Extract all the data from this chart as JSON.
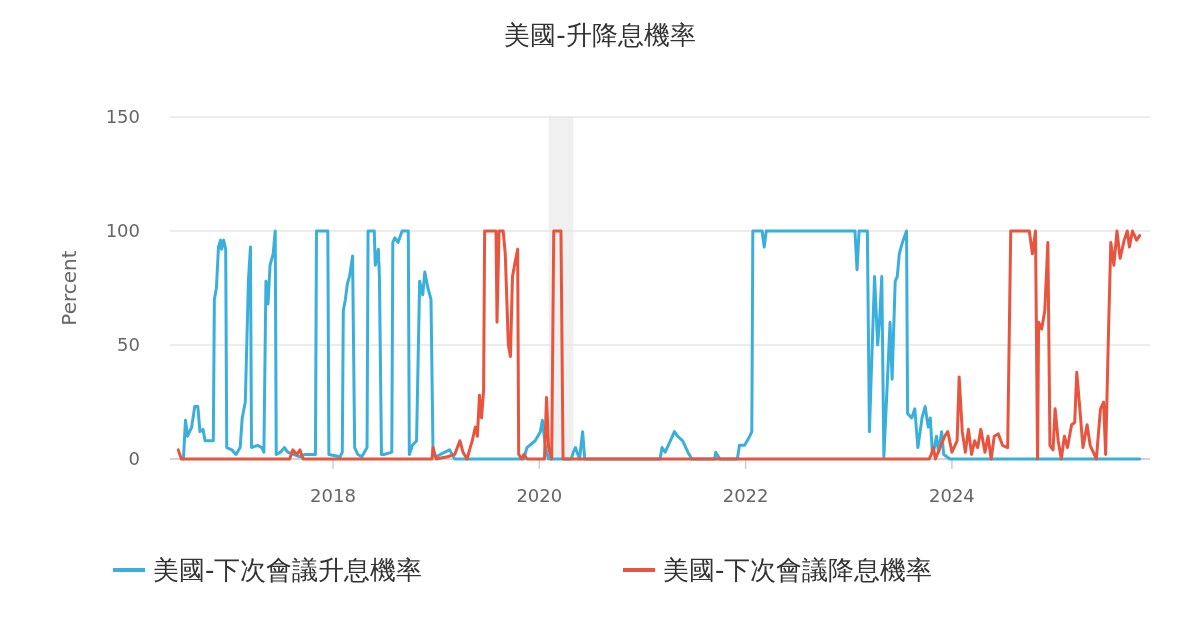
{
  "chart_data": {
    "type": "line",
    "title": "美國-升降息機率",
    "ylabel": "Percent",
    "xlim": [
      2016.42,
      2025.92
    ],
    "xticks": [
      2018,
      2020,
      2022,
      2024
    ],
    "ylim": [
      0,
      150
    ],
    "yticks": [
      0,
      50,
      100,
      150
    ],
    "grid": "y",
    "legend": "bottom",
    "line_style": "solid",
    "bands": [
      {
        "axis": "x",
        "from": 2020.09,
        "to": 2020.33,
        "color": "#f0f0f0"
      }
    ],
    "series": [
      {
        "name": "美國-下次會議升息機率",
        "color": "#3aafdc",
        "x": [
          2016.55,
          2016.57,
          2016.59,
          2016.63,
          2016.66,
          2016.69,
          2016.71,
          2016.74,
          2016.76,
          2016.81,
          2016.84,
          2016.85,
          2016.87,
          2016.89,
          2016.91,
          2016.92,
          2016.94,
          2016.96,
          2016.97,
          2017.02,
          2017.06,
          2017.1,
          2017.12,
          2017.15,
          2017.18,
          2017.2,
          2017.21,
          2017.27,
          2017.31,
          2017.33,
          2017.35,
          2017.37,
          2017.39,
          2017.42,
          2017.44,
          2017.45,
          2017.49,
          2017.53,
          2017.56,
          2017.68,
          2017.73,
          2017.83,
          2017.84,
          2017.95,
          2017.96,
          2018.07,
          2018.09,
          2018.1,
          2018.12,
          2018.14,
          2018.16,
          2018.19,
          2018.21,
          2018.24,
          2018.28,
          2018.33,
          2018.34,
          2018.4,
          2018.41,
          2018.44,
          2018.45,
          2018.47,
          2018.5,
          2018.57,
          2018.58,
          2018.6,
          2018.63,
          2018.67,
          2018.73,
          2018.74,
          2018.77,
          2018.81,
          2018.84,
          2018.87,
          2018.89,
          2018.92,
          2018.95,
          2018.97,
          2019,
          2019.04,
          2019.13,
          2019.18,
          2019.85,
          2019.88,
          2019.96,
          2020.01,
          2020.03,
          2020.06,
          2020.09,
          2020.31,
          2020.33,
          2020.35,
          2020.39,
          2020.42,
          2020.44,
          2021.17,
          2021.19,
          2021.22,
          2021.27,
          2021.31,
          2021.34,
          2021.39,
          2021.44,
          2021.48,
          2021.7,
          2021.71,
          2021.75,
          2021.92,
          2021.94,
          2021.99,
          2022.04,
          2022.06,
          2022.07,
          2022.16,
          2022.18,
          2022.2,
          2023.06,
          2023.08,
          2023.1,
          2023.18,
          2023.2,
          2023.22,
          2023.25,
          2023.28,
          2023.3,
          2023.32,
          2023.34,
          2023.37,
          2023.4,
          2023.42,
          2023.45,
          2023.47,
          2023.49,
          2023.52,
          2023.56,
          2023.57,
          2023.61,
          2023.64,
          2023.67,
          2023.71,
          2023.74,
          2023.77,
          2023.79,
          2023.81,
          2023.83,
          2023.85,
          2023.87,
          2023.9,
          2023.92,
          2023.98,
          2025.82
        ],
        "values": [
          0,
          17,
          10,
          14,
          23,
          23,
          12,
          13,
          8,
          8,
          8,
          70,
          75,
          93,
          96,
          92,
          96,
          92,
          5,
          4,
          2,
          5,
          18,
          25,
          78,
          93,
          5,
          6,
          5,
          3,
          78,
          68,
          85,
          90,
          100,
          2,
          3,
          5,
          3,
          1,
          2,
          2,
          100,
          100,
          2,
          1,
          3,
          65,
          70,
          77,
          80,
          89,
          5,
          2,
          1,
          5,
          100,
          100,
          85,
          92,
          80,
          2,
          2,
          3,
          95,
          97,
          95,
          100,
          100,
          2,
          6,
          8,
          78,
          72,
          82,
          75,
          70,
          2,
          1,
          2,
          4,
          0,
          0,
          5,
          8,
          12,
          17,
          5,
          0,
          0,
          3,
          5,
          0,
          12,
          0,
          0,
          5,
          3,
          8,
          12,
          10,
          8,
          3,
          0,
          0,
          3,
          0,
          0,
          6,
          6,
          10,
          12,
          100,
          100,
          93,
          100,
          100,
          83,
          100,
          100,
          12,
          40,
          80,
          50,
          62,
          80,
          1,
          30,
          60,
          35,
          78,
          80,
          90,
          95,
          100,
          20,
          18,
          22,
          5,
          18,
          23,
          14,
          18,
          3,
          5,
          10,
          3,
          12,
          2,
          0,
          0
        ]
      },
      {
        "name": "美國-下次會議降息機率",
        "color": "#e8553e",
        "x": [
          2016.5,
          2016.53,
          2017.58,
          2017.61,
          2017.65,
          2017.68,
          2017.71,
          2018.96,
          2018.97,
          2019,
          2019.11,
          2019.18,
          2019.23,
          2019.26,
          2019.3,
          2019.33,
          2019.35,
          2019.38,
          2019.4,
          2019.42,
          2019.44,
          2019.46,
          2019.47,
          2019.58,
          2019.59,
          2019.61,
          2019.65,
          2019.67,
          2019.7,
          2019.72,
          2019.74,
          2019.76,
          2019.79,
          2019.8,
          2019.83,
          2019.85,
          2019.88,
          2020.05,
          2020.07,
          2020.09,
          2020.12,
          2020.14,
          2020.21,
          2020.23,
          2023.78,
          2023.8,
          2023.82,
          2023.84,
          2023.93,
          2023.96,
          2024,
          2024.05,
          2024.07,
          2024.1,
          2024.13,
          2024.16,
          2024.19,
          2024.22,
          2024.25,
          2024.28,
          2024.32,
          2024.35,
          2024.38,
          2024.41,
          2024.45,
          2024.49,
          2024.54,
          2024.57,
          2024.75,
          2024.78,
          2024.81,
          2024.83,
          2024.84,
          2024.87,
          2024.9,
          2024.93,
          2024.95,
          2024.98,
          2025,
          2025.03,
          2025.06,
          2025.09,
          2025.12,
          2025.16,
          2025.19,
          2025.21,
          2025.24,
          2025.27,
          2025.31,
          2025.34,
          2025.38,
          2025.4,
          2025.44,
          2025.47,
          2025.49,
          2025.52,
          2025.54,
          2025.57,
          2025.6,
          2025.63,
          2025.65,
          2025.67,
          2025.7,
          2025.72,
          2025.75,
          2025.79,
          2025.82
        ],
        "values": [
          4,
          0,
          0,
          4,
          2,
          4,
          0,
          0,
          5,
          0,
          1,
          2,
          8,
          3,
          0,
          5,
          8,
          14,
          10,
          28,
          18,
          30,
          100,
          100,
          60,
          100,
          100,
          90,
          50,
          45,
          80,
          85,
          92,
          2,
          0,
          2,
          0,
          0,
          27,
          5,
          0,
          100,
          100,
          0,
          0,
          2,
          5,
          0,
          10,
          12,
          3,
          8,
          36,
          12,
          3,
          13,
          2,
          8,
          5,
          13,
          3,
          10,
          0,
          10,
          11,
          6,
          5,
          100,
          100,
          90,
          100,
          0,
          60,
          57,
          65,
          95,
          6,
          4,
          22,
          8,
          0,
          10,
          5,
          15,
          16,
          38,
          22,
          5,
          15,
          6,
          2,
          0,
          22,
          25,
          2,
          60,
          95,
          85,
          100,
          88,
          92,
          96,
          100,
          93,
          100,
          96,
          98
        ]
      }
    ]
  }
}
